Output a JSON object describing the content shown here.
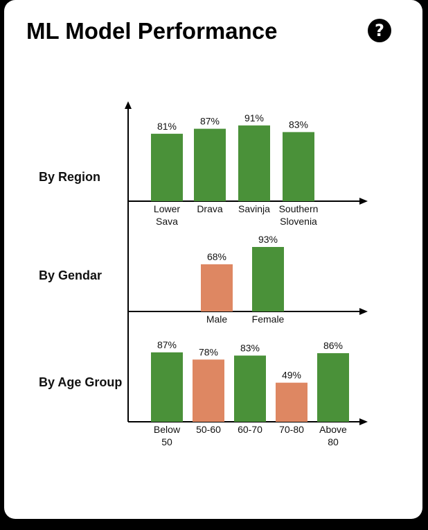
{
  "header": {
    "title": "ML Model Performance",
    "help_glyph": "?",
    "help_icon": "question-circle-icon"
  },
  "colors": {
    "good": "#4a9139",
    "weak": "#de8762",
    "axis": "#000000"
  },
  "chart_data": {
    "type": "bar",
    "title": "ML Model Performance",
    "ylim": [
      0,
      100
    ],
    "unit": "%",
    "groups": [
      {
        "label": "By Region",
        "categories": [
          [
            "Lower",
            "Sava"
          ],
          [
            "Drava"
          ],
          [
            "Savinja"
          ],
          [
            "Southern",
            "Slovenia"
          ]
        ],
        "values": [
          81,
          87,
          91,
          83
        ],
        "labels": [
          "81%",
          "87%",
          "91%",
          "83%"
        ],
        "status": [
          "good",
          "good",
          "good",
          "good"
        ]
      },
      {
        "label": "By Gendar",
        "categories": [
          [
            "Male"
          ],
          [
            "Female"
          ]
        ],
        "values": [
          68,
          93
        ],
        "labels": [
          "68%",
          "93%"
        ],
        "status": [
          "weak",
          "good"
        ]
      },
      {
        "label": "By Age Group",
        "categories": [
          [
            "Below",
            "50"
          ],
          [
            "50-60"
          ],
          [
            "60-70"
          ],
          [
            "70-80"
          ],
          [
            "Above",
            "80"
          ]
        ],
        "values": [
          87,
          78,
          83,
          49,
          86
        ],
        "labels": [
          "87%",
          "78%",
          "83%",
          "49%",
          "86%"
        ],
        "status": [
          "good",
          "weak",
          "good",
          "weak",
          "good"
        ]
      }
    ]
  }
}
